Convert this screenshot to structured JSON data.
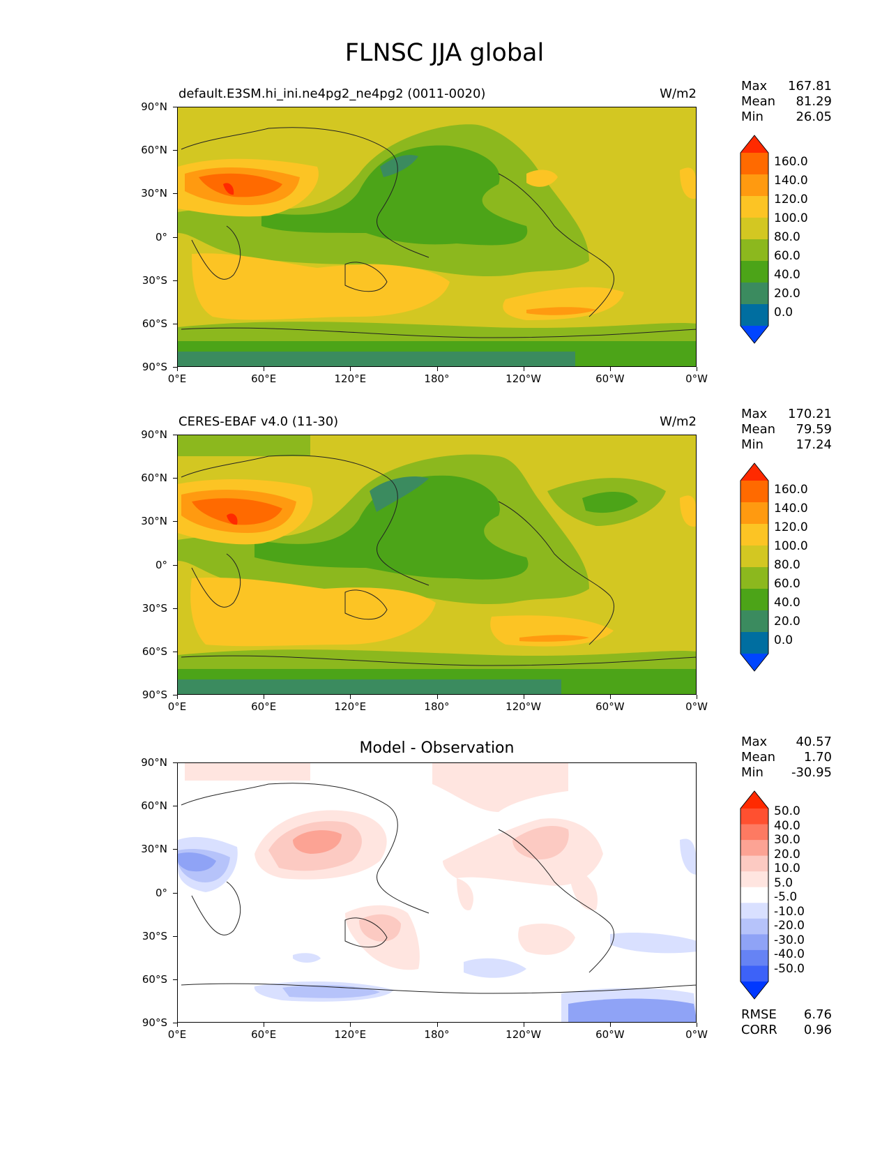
{
  "figure_title": "FLNSC JJA global",
  "panels": [
    {
      "title_left": "default.E3SM.hi_ini.ne4pg2_ne4pg2 (0011-0020)",
      "title_right": "W/m2",
      "title_center": "",
      "stats": [
        {
          "label": "Max",
          "value": "167.81"
        },
        {
          "label": "Mean",
          "value": "81.29"
        },
        {
          "label": "Min",
          "value": "26.05"
        }
      ],
      "colorbar_labels": [
        "160.0",
        "140.0",
        "120.0",
        "100.0",
        "80.0",
        "60.0",
        "40.0",
        "20.0",
        "0.0"
      ],
      "colorbar_colors": [
        "#ff2a00",
        "#ff6a00",
        "#ff9a10",
        "#fcc424",
        "#d3c722",
        "#8cb81e",
        "#4ca418",
        "#3b8b5f",
        "#006ea0",
        "#0045ff"
      ],
      "base_color": "#d3c722"
    },
    {
      "title_left": "CERES-EBAF v4.0 (11-30)",
      "title_right": "W/m2",
      "title_center": "",
      "stats": [
        {
          "label": "Max",
          "value": "170.21"
        },
        {
          "label": "Mean",
          "value": "79.59"
        },
        {
          "label": "Min",
          "value": "17.24"
        }
      ],
      "colorbar_labels": [
        "160.0",
        "140.0",
        "120.0",
        "100.0",
        "80.0",
        "60.0",
        "40.0",
        "20.0",
        "0.0"
      ],
      "colorbar_colors": [
        "#ff2a00",
        "#ff6a00",
        "#ff9a10",
        "#fcc424",
        "#d3c722",
        "#8cb81e",
        "#4ca418",
        "#3b8b5f",
        "#006ea0",
        "#0045ff"
      ],
      "base_color": "#d3c722"
    },
    {
      "title_left": "",
      "title_right": "",
      "title_center": "Model - Observation",
      "stats": [
        {
          "label": "Max",
          "value": "40.57"
        },
        {
          "label": "Mean",
          "value": "1.70"
        },
        {
          "label": "Min",
          "value": "-30.95"
        }
      ],
      "colorbar_labels": [
        "50.0",
        "40.0",
        "30.0",
        "20.0",
        "10.0",
        "5.0",
        "-5.0",
        "-10.0",
        "-20.0",
        "-30.0",
        "-40.0",
        "-50.0"
      ],
      "colorbar_colors": [
        "#ff2a00",
        "#ff5030",
        "#fd7a62",
        "#fca394",
        "#fccac2",
        "#ffe5e0",
        "#ffffff",
        "#d9e0ff",
        "#b6c3fa",
        "#8fa3f6",
        "#6683f4",
        "#3d62f8",
        "#0038ff"
      ],
      "base_color": "#ffffff",
      "footer_stats": [
        {
          "label": "RMSE",
          "value": "6.76"
        },
        {
          "label": "CORR",
          "value": "0.96"
        }
      ]
    }
  ],
  "axes": {
    "y_ticks": [
      "90°N",
      "60°N",
      "30°N",
      "0°",
      "30°S",
      "60°S",
      "90°S"
    ],
    "x_ticks": [
      "0°E",
      "60°E",
      "120°E",
      "180°",
      "120°W",
      "60°W",
      "0°W"
    ]
  }
}
